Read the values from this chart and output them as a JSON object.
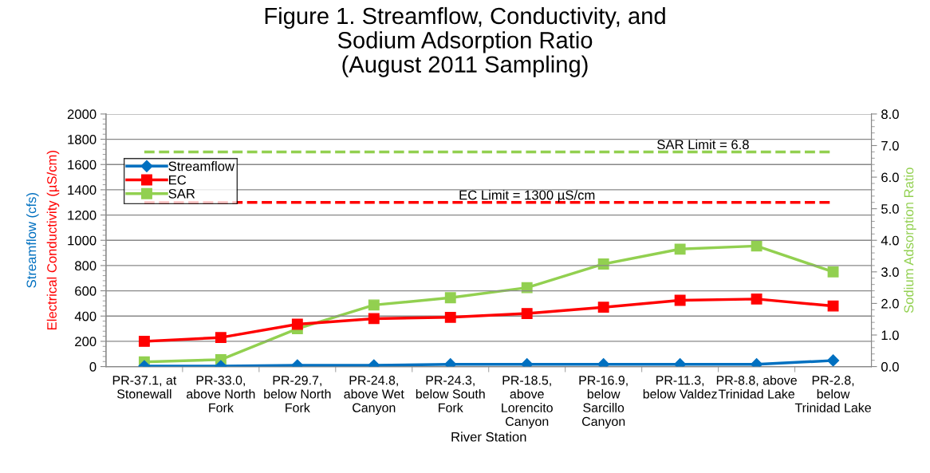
{
  "chart_data": {
    "type": "line",
    "title": "Figure 1. Streamflow, Conductivity, and\nSodium Adsorption Ratio\n(August 2011 Sampling)",
    "xlabel": "River Station",
    "ylabel": "Streamflow (cfs)\nElectrical Conductivity (µS/cm)",
    "y2label": "Sodium Adsorption Ratio",
    "categories": [
      "PR-37.1, at\nStonewall",
      "PR-33.0,\nabove North\nFork",
      "PR-29.7,\nbelow North\nFork",
      "PR-24.8,\nabove Wet\nCanyon",
      "PR-24.3,\nbelow South\nFork",
      "PR-18.5,\nabove\nLorencito\nCanyon",
      "PR-16.9,\nbelow\nSarcillo\nCanyon",
      "PR-11.3,\nbelow Valdez",
      "PR-8.8, above\nTrinidad Lake",
      "PR-2.8,\nbelow\nTrinidad Lake"
    ],
    "series": [
      {
        "name": "Streamflow",
        "color": "#0070c0",
        "marker": "diamond",
        "values": [
          3,
          3,
          10,
          10,
          18,
          18,
          18,
          18,
          18,
          48
        ]
      },
      {
        "name": "EC",
        "color": "#ff0000",
        "marker": "square",
        "values": [
          200,
          230,
          335,
          380,
          390,
          420,
          470,
          525,
          535,
          480
        ]
      },
      {
        "name": "SAR",
        "color": "#92d050",
        "marker": "square",
        "axis": "y2",
        "values": [
          0.15,
          0.22,
          1.2,
          1.95,
          2.18,
          2.5,
          3.25,
          3.72,
          3.82,
          3.0
        ]
      }
    ],
    "ylim": [
      0,
      2000
    ],
    "yticks": [
      0,
      200,
      400,
      600,
      800,
      1000,
      1200,
      1400,
      1600,
      1800,
      2000
    ],
    "y2lim": [
      0,
      8
    ],
    "y2ticks": [
      {
        "value": 0,
        "label": "0.0"
      },
      {
        "value": 1,
        "label": "1.0"
      },
      {
        "value": 2,
        "label": "2.0"
      },
      {
        "value": 3,
        "label": "3.0"
      },
      {
        "value": 4,
        "label": "4.0"
      },
      {
        "value": 5,
        "label": "5.0"
      },
      {
        "value": 6,
        "label": "6.0"
      },
      {
        "value": 7,
        "label": "7.0"
      },
      {
        "value": 8,
        "label": "8.0"
      }
    ],
    "ref_lines": [
      {
        "axis": "y",
        "value": 1300,
        "label": "EC Limit = 1300 µS/cm",
        "color": "#ff0000",
        "line_style": "dashed"
      },
      {
        "axis": "y2",
        "value": 6.8,
        "label": "SAR Limit = 6.8",
        "color": "#92d050",
        "line_style": "dashed"
      }
    ],
    "grid": "y",
    "legend": "top left",
    "line_style": "solid"
  }
}
